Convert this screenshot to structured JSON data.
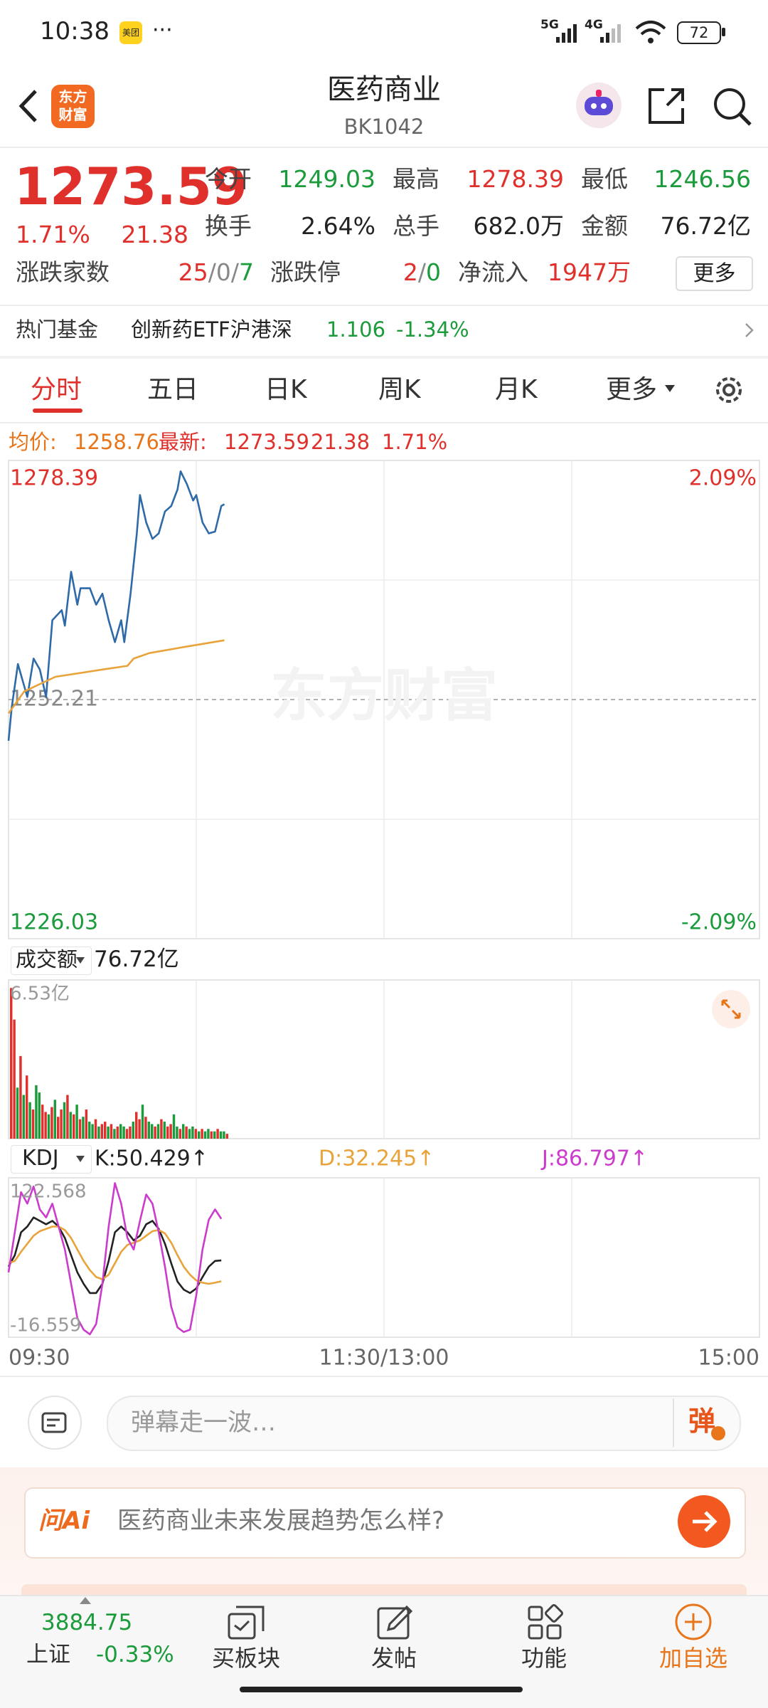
{
  "status_bar": {
    "time": "10:38",
    "app_badge": "美团",
    "more": "···",
    "network_1": "5G",
    "network_2": "4G",
    "battery": "72"
  },
  "header": {
    "logo": [
      "东方",
      "财富"
    ],
    "title": "医药商业",
    "code": "BK1042"
  },
  "quote": {
    "price": "1273.59",
    "change_pct": "1.71%",
    "change": "21.38",
    "fields": [
      [
        "今开",
        "1249.03"
      ],
      [
        "最高",
        "1278.39"
      ],
      [
        "最低",
        "1246.56"
      ],
      [
        "换手",
        "2.64%"
      ],
      [
        "总手",
        "682.0万"
      ],
      [
        "金额",
        "76.72亿"
      ]
    ],
    "breadth_label": "涨跌家数",
    "breadth": {
      "up": "25",
      "flat": "0",
      "down": "7"
    },
    "sep": "/",
    "limit_label": "涨跌停",
    "limit": {
      "up": "2",
      "down": "0"
    },
    "net_inflow_label": "净流入",
    "net_inflow": "1947万",
    "more_button": "更多"
  },
  "hot_fund": {
    "label": "热门基金",
    "name": "创新药ETF沪港深",
    "price": "1.106",
    "change": "-1.34%"
  },
  "tabs": [
    "分时",
    "五日",
    "日K",
    "周K",
    "月K",
    "更多"
  ],
  "info_bar": {
    "avg_label": "均价:",
    "avg": "1258.76",
    "last_label": "最新:",
    "last": "1273.59",
    "change": "21.38",
    "change_pct": "1.71%"
  },
  "chart_data": [
    {
      "type": "line",
      "watermark": "东方财富",
      "xlim": [
        0,
        240
      ],
      "xticks": [
        {
          "value": 0,
          "label": "09:30"
        },
        {
          "value": 120,
          "label": "11:30/13:00"
        },
        {
          "value": 240,
          "label": "15:00"
        }
      ],
      "xgrid": [
        60,
        120,
        180
      ],
      "ylim": [
        1226.03,
        1278.39
      ],
      "yticks": [
        1278.39,
        1252.21,
        1226.03
      ],
      "ygrid": [
        1265.3,
        1239.1
      ],
      "baseline": 1252.21,
      "y2lim": [
        -2.09,
        2.09
      ],
      "y2ticks": [
        {
          "value": 2.09,
          "label": "2.09%"
        },
        {
          "value": -2.09,
          "label": "-2.09%"
        }
      ],
      "up_color": "#e0302c",
      "down_color": "#1b9b3b",
      "flat_color": "#888888",
      "series": [
        {
          "color": "#2f6aa8",
          "x": [
            0,
            1,
            3,
            6,
            8,
            10,
            12,
            14,
            17,
            18,
            20,
            22,
            23,
            26,
            28,
            30,
            32,
            34,
            36,
            37,
            39,
            41,
            42,
            44,
            46,
            48,
            50,
            52,
            54,
            55,
            57,
            59,
            60,
            62,
            64,
            66,
            68,
            69
          ],
          "values": [
            1247.7,
            1251.3,
            1256.1,
            1252.5,
            1256.7,
            1255.5,
            1252.5,
            1260.9,
            1262.0,
            1260.3,
            1266.2,
            1262.6,
            1264.4,
            1264.4,
            1262.6,
            1263.8,
            1260.9,
            1258.5,
            1260.9,
            1258.5,
            1263.8,
            1270.4,
            1274.6,
            1271.6,
            1269.8,
            1270.4,
            1272.8,
            1273.4,
            1275.2,
            1277.2,
            1275.8,
            1274.0,
            1274.6,
            1271.6,
            1270.4,
            1270.6,
            1273.4,
            1273.6
          ]
        },
        {
          "color": "#e8a33a",
          "x": [
            0,
            5,
            15,
            30,
            38,
            40,
            45,
            55,
            69
          ],
          "values": [
            1250.7,
            1253.1,
            1254.7,
            1255.5,
            1255.9,
            1256.7,
            1257.3,
            1257.9,
            1258.7
          ]
        }
      ]
    },
    {
      "type": "bar",
      "title": "成交额",
      "subtitle": "76.72亿",
      "xlim": [
        0,
        240
      ],
      "ylim": [
        0,
        6.53
      ],
      "yticks": [
        {
          "value": 6.53,
          "label": "6.53亿"
        }
      ],
      "up_color": "#e0302c",
      "down_color": "#1b9b3b",
      "x": [
        0,
        1,
        2,
        3,
        4,
        5,
        6,
        7,
        8,
        9,
        10,
        11,
        12,
        13,
        14,
        15,
        16,
        17,
        18,
        19,
        20,
        21,
        22,
        23,
        24,
        25,
        26,
        27,
        28,
        29,
        30,
        31,
        32,
        33,
        34,
        35,
        36,
        37,
        38,
        39,
        40,
        41,
        42,
        43,
        44,
        45,
        46,
        47,
        48,
        49,
        50,
        51,
        52,
        53,
        54,
        55,
        56,
        57,
        58,
        59,
        60,
        61,
        62,
        63,
        64,
        65,
        66,
        67,
        68,
        69
      ],
      "values": [
        6.2,
        4.9,
        2.1,
        3.4,
        1.8,
        2.6,
        1.5,
        1.2,
        2.2,
        1.9,
        1.4,
        1.1,
        1.0,
        1.3,
        1.6,
        0.9,
        1.2,
        1.5,
        1.8,
        1.1,
        1.0,
        1.4,
        0.8,
        0.9,
        1.2,
        0.7,
        0.6,
        0.8,
        0.5,
        0.6,
        0.7,
        0.5,
        0.6,
        0.4,
        0.5,
        0.6,
        0.5,
        0.4,
        0.5,
        0.7,
        1.1,
        0.8,
        1.4,
        0.9,
        0.7,
        0.6,
        0.5,
        0.6,
        0.8,
        0.7,
        0.5,
        0.6,
        1.0,
        0.5,
        0.4,
        0.6,
        0.5,
        0.4,
        0.5,
        0.4,
        0.3,
        0.4,
        0.3,
        0.4,
        0.3,
        0.3,
        0.4,
        0.3,
        0.3,
        0.2
      ],
      "up": [
        true,
        true,
        false,
        true,
        false,
        true,
        false,
        true,
        false,
        false,
        true,
        true,
        false,
        true,
        false,
        true,
        true,
        false,
        true,
        false,
        true,
        false,
        true,
        false,
        true,
        false,
        false,
        true,
        false,
        true,
        true,
        false,
        true,
        false,
        true,
        false,
        false,
        true,
        true,
        false,
        true,
        true,
        false,
        true,
        false,
        false,
        true,
        false,
        true,
        false,
        true,
        true,
        false,
        false,
        true,
        false,
        true,
        false,
        false,
        true,
        false,
        true,
        false,
        false,
        true,
        false,
        true,
        false,
        false,
        true
      ]
    },
    {
      "type": "line",
      "title": "KDJ",
      "xlim": [
        0,
        240
      ],
      "ylim": [
        -16.559,
        122.568
      ],
      "yticks": [
        122.568,
        -16.559
      ],
      "x": [
        0,
        2,
        4,
        6,
        8,
        10,
        12,
        14,
        16,
        18,
        20,
        22,
        24,
        26,
        28,
        30,
        32,
        34,
        36,
        38,
        40,
        42,
        44,
        46,
        48,
        50,
        52,
        54,
        56,
        58,
        60,
        62,
        64,
        66,
        68
      ],
      "series": [
        {
          "legend_label": "K:50.429↑",
          "color": "#222222",
          "values": [
            45,
            55,
            75,
            80,
            88,
            85,
            82,
            85,
            80,
            70,
            55,
            40,
            30,
            22,
            22,
            30,
            50,
            75,
            80,
            75,
            68,
            72,
            82,
            85,
            78,
            65,
            48,
            32,
            25,
            22,
            26,
            36,
            45,
            50,
            50.429
          ]
        },
        {
          "legend_label": "D:32.245↑",
          "color": "#e8a33a",
          "values": [
            48,
            50,
            58,
            65,
            72,
            76,
            78,
            80,
            80,
            77,
            70,
            60,
            50,
            42,
            36,
            34,
            38,
            48,
            58,
            64,
            66,
            68,
            72,
            76,
            77,
            74,
            66,
            55,
            45,
            38,
            33,
            31,
            30,
            31,
            32.245
          ]
        },
        {
          "legend_label": "J:86.797↑",
          "color": "#cc3ccc",
          "values": [
            40,
            75,
            110,
            100,
            115,
            95,
            88,
            100,
            80,
            60,
            30,
            0,
            -10,
            -14,
            -5,
            30,
            80,
            118,
            100,
            70,
            60,
            85,
            108,
            100,
            75,
            45,
            10,
            -8,
            -12,
            -10,
            20,
            60,
            86,
            95,
            86.797
          ]
        }
      ]
    }
  ],
  "comment_bar": {
    "placeholder": "弹幕走一波…",
    "danmaku": "弹"
  },
  "ai": {
    "brand": "问Ai",
    "prompt": "医药商业未来发展趋势怎么样?"
  },
  "bottom_nav": {
    "index_value": "3884.75",
    "index_name": "上证",
    "index_change": "-0.33%",
    "items": [
      "买板块",
      "发帖",
      "功能",
      "加自选"
    ]
  }
}
